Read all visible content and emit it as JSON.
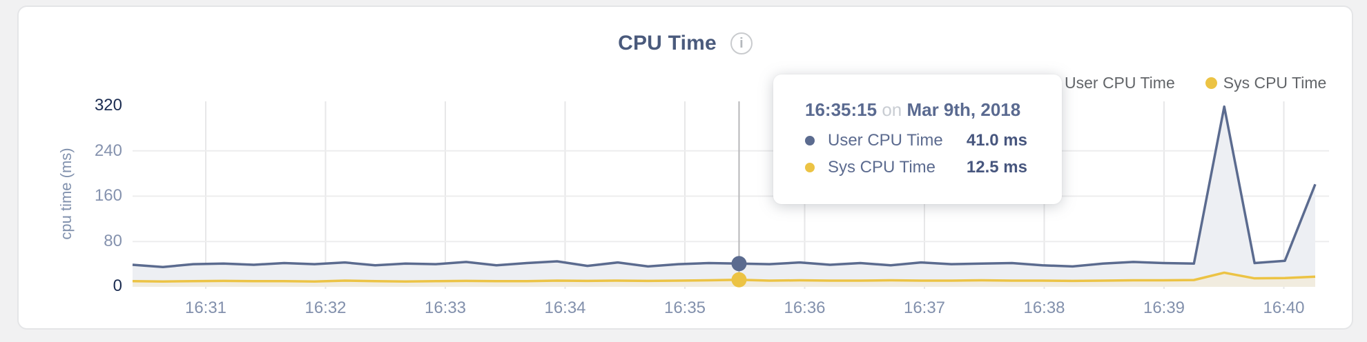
{
  "card": {
    "title": "CPU Time",
    "info_icon_glyph": "i"
  },
  "legend": [
    {
      "label": "User CPU Time",
      "color": "#5b6b8f"
    },
    {
      "label": "Sys CPU Time",
      "color": "#ecc344"
    }
  ],
  "axes": {
    "y_label": "cpu time (ms)",
    "y_ticks": [
      "320",
      "240",
      "160",
      "80",
      "0"
    ],
    "x_ticks": [
      "16:31",
      "16:32",
      "16:33",
      "16:34",
      "16:35",
      "16:36",
      "16:37",
      "16:38",
      "16:39",
      "16:40"
    ]
  },
  "tooltip": {
    "time": "16:35:15",
    "conjunction": "on",
    "date": "Mar 9th, 2018",
    "rows": [
      {
        "label": "User CPU Time",
        "value": "41.0 ms",
        "color": "#5b6b8f"
      },
      {
        "label": "Sys CPU Time",
        "value": "12.5 ms",
        "color": "#ecc344"
      }
    ]
  },
  "chart_data": {
    "type": "area",
    "title": "CPU Time",
    "xlabel": "",
    "ylabel": "cpu time (ms)",
    "ylim": [
      0,
      320
    ],
    "y_tick_values": [
      0,
      80,
      160,
      240,
      320
    ],
    "x_tick_labels": [
      "16:31",
      "16:32",
      "16:33",
      "16:34",
      "16:35",
      "16:36",
      "16:37",
      "16:38",
      "16:39",
      "16:40"
    ],
    "grid": true,
    "legend_position": "top-right",
    "times": [
      "16:30:15",
      "16:30:30",
      "16:30:45",
      "16:31:00",
      "16:31:15",
      "16:31:30",
      "16:31:45",
      "16:32:00",
      "16:32:15",
      "16:32:30",
      "16:32:45",
      "16:33:00",
      "16:33:15",
      "16:33:30",
      "16:33:45",
      "16:34:00",
      "16:34:15",
      "16:34:30",
      "16:34:45",
      "16:35:00",
      "16:35:15",
      "16:35:30",
      "16:35:45",
      "16:36:00",
      "16:36:15",
      "16:36:30",
      "16:36:45",
      "16:37:00",
      "16:37:15",
      "16:37:30",
      "16:37:45",
      "16:38:00",
      "16:38:15",
      "16:38:30",
      "16:38:45",
      "16:39:00",
      "16:39:15",
      "16:39:30",
      "16:39:45",
      "16:40:00"
    ],
    "series": [
      {
        "name": "User CPU Time",
        "color": "#5b6b8f",
        "fill": "#edeff3",
        "values": [
          39,
          35,
          40,
          41,
          39,
          42,
          40,
          43,
          38,
          41,
          40,
          44,
          38,
          42,
          45,
          37,
          43,
          36,
          40,
          42,
          41,
          40,
          43,
          39,
          42,
          38,
          43,
          40,
          41,
          42,
          38,
          36,
          41,
          44,
          42,
          41,
          318,
          42,
          46,
          181
        ]
      },
      {
        "name": "Sys CPU Time",
        "color": "#ecc344",
        "fill": "#f1ecdf",
        "values": [
          10,
          9.5,
          10,
          10.5,
          10,
          10,
          9.5,
          11,
          10,
          9.5,
          10,
          10.5,
          10,
          10,
          11,
          10.5,
          11,
          10.5,
          11,
          11.5,
          12.5,
          11,
          11.5,
          11,
          11,
          11.5,
          11,
          11,
          11.5,
          11,
          11,
          10.5,
          11,
          11.5,
          11.5,
          12,
          25,
          15,
          15.5,
          18
        ]
      }
    ],
    "highlight": {
      "index": 20,
      "time": "16:35:15",
      "date": "Mar 9th, 2018",
      "user_cpu_ms": 41.0,
      "sys_cpu_ms": 12.5
    }
  }
}
